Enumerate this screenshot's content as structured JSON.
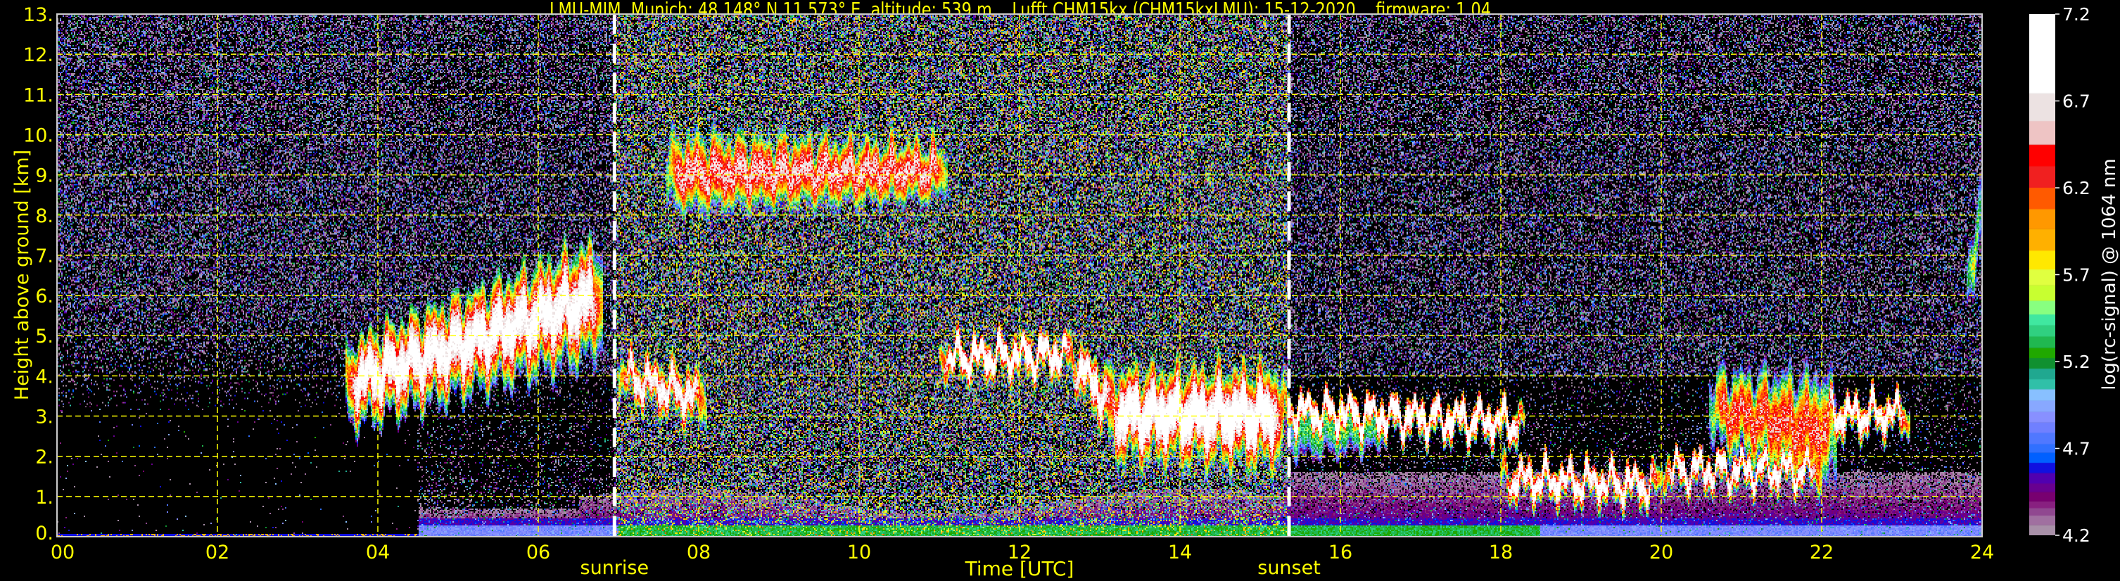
{
  "title": "LMU-MIM, Munich; 48.148° N 11.573° E, altitude: 539 m    Lufft CHM15kx (CHM15kxLMU): 15-12-2020    firmware: 1.04",
  "chart_data": {
    "type": "heatmap",
    "xlabel": "Time [UTC]",
    "ylabel": "Height above ground [km]",
    "xlim": [
      0,
      24
    ],
    "ylim": [
      0,
      13
    ],
    "x_ticks": [
      "00",
      "02",
      "04",
      "06",
      "08",
      "10",
      "12",
      "14",
      "16",
      "18",
      "20",
      "22",
      "24"
    ],
    "y_ticks": [
      "0.",
      "1.",
      "2.",
      "3.",
      "4.",
      "5.",
      "6.",
      "7.",
      "8.",
      "9.",
      "10.",
      "11.",
      "12.",
      "13."
    ],
    "grid": true,
    "grid_color": "#ffff00",
    "background": "#000000",
    "markers": [
      {
        "label": "sunrise",
        "time": 6.95,
        "color": "#ffffff"
      },
      {
        "label": "sunset",
        "time": 15.36,
        "color": "#ffffff"
      }
    ],
    "colorbar": {
      "label": "log(rc-signal) @ 1064 nm",
      "range": [
        4.2,
        7.2
      ],
      "ticks": [
        "4.2",
        "4.7",
        "5.2",
        "5.7",
        "6.2",
        "6.7",
        "7.2"
      ],
      "levels": [
        4.2,
        4.26,
        4.315,
        4.358,
        4.397,
        4.45,
        4.5,
        4.56,
        4.619,
        4.677,
        4.727,
        4.792,
        4.851,
        4.912,
        4.977,
        5.042,
        5.1,
        5.161,
        5.222,
        5.28,
        5.346,
        5.41,
        5.473,
        5.552,
        5.64,
        5.732,
        5.84,
        5.964,
        6.079,
        6.202,
        6.326,
        6.45,
        6.586,
        6.745,
        7.2
      ],
      "colors": [
        "#a890a8",
        "#a070a0",
        "#904890",
        "#882080",
        "#780070",
        "#680090",
        "#5000b0",
        "#1010e0",
        "#0060ff",
        "#3070ff",
        "#5078ff",
        "#7080ff",
        "#8890ff",
        "#88a8ff",
        "#88c0ff",
        "#30c0a8",
        "#20a890",
        "#109030",
        "#20a800",
        "#20b850",
        "#30d080",
        "#40e8a0",
        "#88ff80",
        "#c8ff30",
        "#e0ff40",
        "#ffe800",
        "#ffb000",
        "#ff9800",
        "#ff5a00",
        "#f02020",
        "#ff0000",
        "#eec4c4",
        "#ece2e2",
        "#ffffff"
      ]
    },
    "features": [
      {
        "kind": "cloud",
        "t": [
          3.6,
          6.8
        ],
        "base_km": [
          3.0,
          4.8
        ],
        "top_km": [
          4.6,
          7.2
        ],
        "peak": 7.0
      },
      {
        "kind": "cloud",
        "t": [
          7.0,
          8.1
        ],
        "base_km": [
          3.8,
          3.0
        ],
        "top_km": [
          4.3,
          3.8
        ],
        "peak": 6.9
      },
      {
        "kind": "cirrus",
        "t": [
          7.6,
          11.1
        ],
        "base_km": [
          8.3,
          8.6
        ],
        "top_km": [
          9.8,
          9.6
        ],
        "peak": 6.6
      },
      {
        "kind": "cloud",
        "t": [
          11.0,
          12.7
        ],
        "base_km": [
          4.3,
          4.4
        ],
        "top_km": [
          4.6,
          4.7
        ],
        "peak": 7.1
      },
      {
        "kind": "cloud",
        "t": [
          12.6,
          13.2
        ],
        "base_km": [
          4.3,
          2.6
        ],
        "top_km": [
          4.7,
          3.8
        ],
        "peak": 7.0
      },
      {
        "kind": "cloud",
        "t": [
          13.1,
          15.3
        ],
        "base_km": [
          2.2,
          2.0
        ],
        "top_km": [
          3.9,
          4.0
        ],
        "peak": 7.1
      },
      {
        "kind": "cloud",
        "t": [
          15.3,
          18.3
        ],
        "base_km": [
          3.0,
          2.7
        ],
        "top_km": [
          3.25,
          2.95
        ],
        "peak": 7.1
      },
      {
        "kind": "virga",
        "t": [
          15.3,
          16.6
        ],
        "base_km": [
          2.0,
          2.3
        ],
        "top_km": [
          3.0,
          2.9
        ],
        "peak": 5.4
      },
      {
        "kind": "cloud",
        "t": [
          18.0,
          20.0
        ],
        "base_km": [
          1.3,
          1.15
        ],
        "top_km": [
          1.6,
          1.4
        ],
        "peak": 7.0
      },
      {
        "kind": "cloud",
        "t": [
          20.0,
          22.0
        ],
        "base_km": [
          1.55,
          1.55
        ],
        "top_km": [
          1.7,
          1.7
        ],
        "peak": 7.0
      },
      {
        "kind": "cloud",
        "t": [
          20.6,
          22.2
        ],
        "base_km": [
          2.5,
          1.2
        ],
        "top_km": [
          3.9,
          3.9
        ],
        "peak": 6.4
      },
      {
        "kind": "cloud",
        "t": [
          22.0,
          23.1
        ],
        "base_km": [
          2.85,
          2.95
        ],
        "top_km": [
          3.2,
          3.2
        ],
        "peak": 7.0
      },
      {
        "kind": "cloud",
        "t": [
          23.8,
          24.0
        ],
        "base_km": [
          5.8,
          7.0
        ],
        "top_km": [
          6.8,
          9.0
        ],
        "peak": 6.2
      }
    ]
  }
}
